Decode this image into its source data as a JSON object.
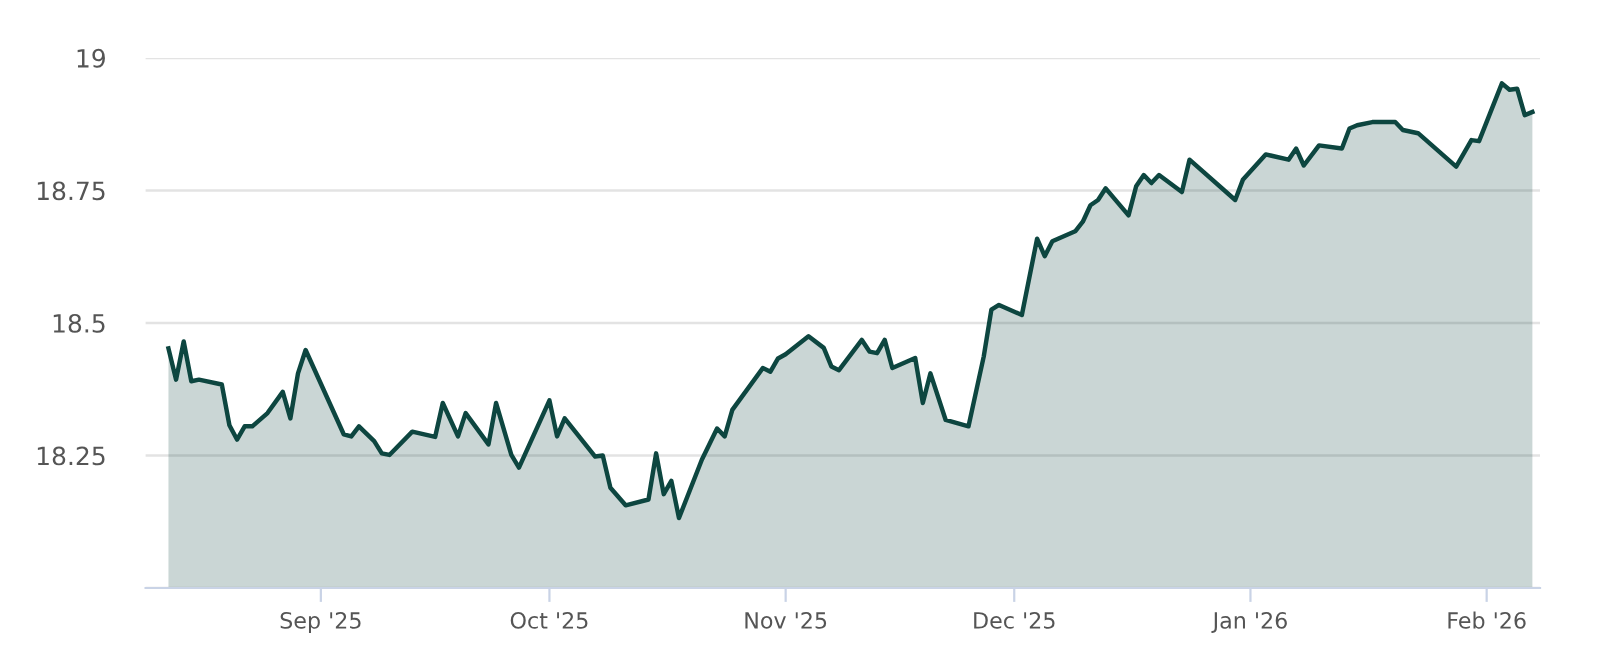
{
  "chart_data": {
    "type": "area",
    "x": [
      "2025-08-12",
      "2025-08-13",
      "2025-08-14",
      "2025-08-15",
      "2025-08-16",
      "2025-08-19",
      "2025-08-20",
      "2025-08-21",
      "2025-08-22",
      "2025-08-23",
      "2025-08-25",
      "2025-08-27",
      "2025-08-28",
      "2025-08-29",
      "2025-08-30",
      "2025-09-04",
      "2025-09-05",
      "2025-09-06",
      "2025-09-08",
      "2025-09-09",
      "2025-09-10",
      "2025-09-13",
      "2025-09-16",
      "2025-09-17",
      "2025-09-19",
      "2025-09-20",
      "2025-09-23",
      "2025-09-24",
      "2025-09-26",
      "2025-09-27",
      "2025-10-01",
      "2025-10-02",
      "2025-10-03",
      "2025-10-07",
      "2025-10-08",
      "2025-10-09",
      "2025-10-11",
      "2025-10-14",
      "2025-10-15",
      "2025-10-16",
      "2025-10-17",
      "2025-10-18",
      "2025-10-21",
      "2025-10-23",
      "2025-10-24",
      "2025-10-25",
      "2025-10-29",
      "2025-10-30",
      "2025-10-31",
      "2025-11-01",
      "2025-11-04",
      "2025-11-06",
      "2025-11-07",
      "2025-11-08",
      "2025-11-11",
      "2025-11-12",
      "2025-11-13",
      "2025-11-14",
      "2025-11-15",
      "2025-11-18",
      "2025-11-19",
      "2025-11-20",
      "2025-11-22",
      "2025-11-25",
      "2025-11-27",
      "2025-11-28",
      "2025-11-29",
      "2025-12-02",
      "2025-12-04",
      "2025-12-05",
      "2025-12-06",
      "2025-12-09",
      "2025-12-10",
      "2025-12-11",
      "2025-12-12",
      "2025-12-13",
      "2025-12-16",
      "2025-12-17",
      "2025-12-18",
      "2025-12-19",
      "2025-12-20",
      "2025-12-23",
      "2025-12-24",
      "2025-12-30",
      "2025-12-31",
      "2026-01-03",
      "2026-01-06",
      "2026-01-07",
      "2026-01-08",
      "2026-01-10",
      "2026-01-13",
      "2026-01-14",
      "2026-01-15",
      "2026-01-17",
      "2026-01-20",
      "2026-01-21",
      "2026-01-23",
      "2026-01-28",
      "2026-01-30",
      "2026-01-31",
      "2026-02-03",
      "2026-02-04",
      "2026-02-05",
      "2026-02-06",
      "2026-02-07"
    ],
    "series": [
      {
        "color": "#0d4640",
        "values": [
          18.452,
          18.393,
          18.465,
          18.39,
          18.393,
          18.384,
          18.307,
          18.28,
          18.305,
          18.305,
          18.33,
          18.37,
          18.32,
          18.405,
          18.449,
          18.29,
          18.286,
          18.305,
          18.277,
          18.254,
          18.251,
          18.295,
          18.285,
          18.349,
          18.286,
          18.33,
          18.271,
          18.349,
          18.251,
          18.227,
          18.354,
          18.286,
          18.32,
          18.248,
          18.25,
          18.189,
          18.156,
          18.167,
          18.254,
          18.177,
          18.202,
          18.132,
          18.242,
          18.301,
          18.286,
          18.336,
          18.415,
          18.408,
          18.433,
          18.441,
          18.475,
          18.453,
          18.418,
          18.411,
          18.468,
          18.446,
          18.443,
          18.468,
          18.415,
          18.434,
          18.349,
          18.405,
          18.317,
          18.305,
          18.437,
          18.525,
          18.534,
          18.515,
          18.659,
          18.626,
          18.654,
          18.673,
          18.691,
          18.722,
          18.732,
          18.754,
          18.703,
          18.758,
          18.779,
          18.764,
          18.779,
          18.747,
          18.808,
          18.732,
          18.77,
          18.818,
          18.808,
          18.829,
          18.797,
          18.835,
          18.829,
          18.867,
          18.873,
          18.879,
          18.879,
          18.864,
          18.858,
          18.795,
          18.845,
          18.843,
          18.952,
          18.94,
          18.942,
          18.892,
          18.898
        ]
      }
    ],
    "xlim": [
      "2025-08-09",
      "2026-02-08"
    ],
    "xticks": [
      {
        "value": "2025-09-01",
        "label": "Sep '25"
      },
      {
        "value": "2025-10-01",
        "label": "Oct '25"
      },
      {
        "value": "2025-11-01",
        "label": "Nov '25"
      },
      {
        "value": "2025-12-01",
        "label": "Dec '25"
      },
      {
        "value": "2026-01-01",
        "label": "Jan '26"
      },
      {
        "value": "2026-02-01",
        "label": "Feb '26"
      }
    ],
    "ylim": [
      18.0,
      19
    ],
    "yticks": [
      {
        "value": 18.0,
        "label": null
      },
      18.25,
      18.5,
      18.75,
      19
    ],
    "grid": "y",
    "legend": false,
    "marker": "none",
    "line_style": "solid"
  }
}
